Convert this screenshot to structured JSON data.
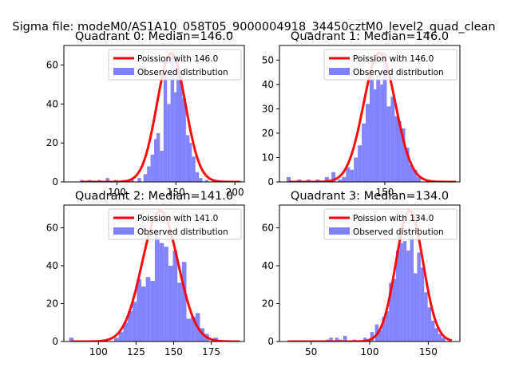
{
  "suptitle": "Sigma file: modeM0/AS1A10_058T05_9000004918_34450cztM0_level2_quad_clean",
  "colors": {
    "poisson": "#ff0000",
    "observed": "#8080ff"
  },
  "chart_data": [
    {
      "type": "bar",
      "title": "Quadrant 0: Median=146.0",
      "legend": {
        "poisson_label": "Poission with 146.0",
        "observed_label": "Observed distribution",
        "location": "upper-right"
      },
      "xlim": [
        55,
        208
      ],
      "ylim": [
        0,
        70
      ],
      "xticks": [
        100,
        150,
        200
      ],
      "yticks": [
        0,
        20,
        40,
        60
      ],
      "bins": [
        [
          70,
          1
        ],
        [
          77,
          1
        ],
        [
          85,
          1
        ],
        [
          92,
          2
        ],
        [
          99,
          1
        ],
        [
          106,
          1
        ],
        [
          113,
          1
        ],
        [
          119,
          2
        ],
        [
          124,
          4
        ],
        [
          127,
          8
        ],
        [
          130,
          14
        ],
        [
          133,
          22
        ],
        [
          135,
          25
        ],
        [
          138,
          16
        ],
        [
          141,
          56
        ],
        [
          144,
          40
        ],
        [
          147,
          66
        ],
        [
          150,
          46
        ],
        [
          152,
          59
        ],
        [
          154,
          55
        ],
        [
          157,
          43
        ],
        [
          160,
          24
        ],
        [
          162,
          20
        ],
        [
          165,
          13
        ],
        [
          168,
          5
        ],
        [
          171,
          2
        ],
        [
          176,
          1
        ],
        [
          185,
          1
        ]
      ],
      "poisson": {
        "mean": 146.0,
        "peak": 66,
        "x_range": [
          70,
          205
        ]
      }
    },
    {
      "type": "bar",
      "title": "Quadrant 1: Median=146.0",
      "legend": {
        "poisson_label": "Poission with 146.0",
        "observed_label": "Observed distribution",
        "location": "upper-right"
      },
      "xlim": [
        70,
        207
      ],
      "ylim": [
        0,
        56
      ],
      "xticks": [
        150
      ],
      "yticks": [
        0,
        10,
        20,
        30,
        40,
        50
      ],
      "bins": [
        [
          77,
          2
        ],
        [
          85,
          1
        ],
        [
          92,
          1
        ],
        [
          99,
          1
        ],
        [
          106,
          2
        ],
        [
          111,
          4
        ],
        [
          116,
          1
        ],
        [
          119,
          2
        ],
        [
          122,
          6
        ],
        [
          125,
          5
        ],
        [
          128,
          10
        ],
        [
          131,
          15
        ],
        [
          134,
          24
        ],
        [
          137,
          32
        ],
        [
          140,
          44
        ],
        [
          143,
          38
        ],
        [
          145,
          44
        ],
        [
          148,
          40
        ],
        [
          150,
          53
        ],
        [
          153,
          31
        ],
        [
          156,
          35
        ],
        [
          159,
          27
        ],
        [
          161,
          25
        ],
        [
          164,
          22
        ],
        [
          167,
          14
        ],
        [
          170,
          7
        ],
        [
          173,
          5
        ],
        [
          176,
          2
        ]
      ],
      "poisson": {
        "mean": 146.0,
        "peak": 53,
        "x_range": [
          77,
          204
        ]
      }
    },
    {
      "type": "bar",
      "title": "Quadrant 2: Median=141.0",
      "legend": {
        "poisson_label": "Poission with 141.0",
        "observed_label": "Observed distribution",
        "location": "upper-right"
      },
      "xlim": [
        77,
        197
      ],
      "ylim": [
        0,
        72
      ],
      "xticks": [
        100,
        125,
        150,
        175
      ],
      "yticks": [
        0,
        20,
        40,
        60
      ],
      "bins": [
        [
          82,
          2
        ],
        [
          112,
          2
        ],
        [
          115,
          5
        ],
        [
          118,
          10
        ],
        [
          121,
          16
        ],
        [
          124,
          21
        ],
        [
          127,
          33
        ],
        [
          130,
          29
        ],
        [
          133,
          34
        ],
        [
          136,
          32
        ],
        [
          139,
          58
        ],
        [
          142,
          52
        ],
        [
          145,
          50
        ],
        [
          148,
          40
        ],
        [
          151,
          48
        ],
        [
          154,
          31
        ],
        [
          157,
          42
        ],
        [
          160,
          12
        ],
        [
          163,
          13
        ],
        [
          166,
          15
        ],
        [
          169,
          7
        ],
        [
          172,
          4
        ],
        [
          178,
          2
        ]
      ],
      "poisson": {
        "mean": 141.0,
        "peak": 69,
        "x_range": [
          82,
          194
        ]
      }
    },
    {
      "type": "bar",
      "title": "Quadrant 3: Median=134.0",
      "legend": {
        "poisson_label": "Poission with 134.0",
        "observed_label": "Observed distribution",
        "location": "upper-right"
      },
      "xlim": [
        23,
        177
      ],
      "ylim": [
        0,
        72
      ],
      "xticks": [
        50,
        100,
        150
      ],
      "yticks": [
        0,
        20,
        40,
        60
      ],
      "bins": [
        [
          64,
          1
        ],
        [
          67,
          2
        ],
        [
          72,
          2
        ],
        [
          75,
          1
        ],
        [
          79,
          3
        ],
        [
          87,
          1
        ],
        [
          96,
          2
        ],
        [
          102,
          5
        ],
        [
          106,
          9
        ],
        [
          109,
          6
        ],
        [
          112,
          13
        ],
        [
          115,
          16
        ],
        [
          118,
          31
        ],
        [
          121,
          33
        ],
        [
          124,
          48
        ],
        [
          127,
          52
        ],
        [
          130,
          53
        ],
        [
          133,
          48
        ],
        [
          136,
          57
        ],
        [
          139,
          36
        ],
        [
          142,
          47
        ],
        [
          145,
          39
        ],
        [
          148,
          26
        ],
        [
          151,
          18
        ],
        [
          154,
          11
        ],
        [
          157,
          7
        ],
        [
          160,
          4
        ],
        [
          163,
          2
        ]
      ],
      "poisson": {
        "mean": 134.0,
        "peak": 69,
        "x_range": [
          30,
          170
        ]
      }
    }
  ]
}
